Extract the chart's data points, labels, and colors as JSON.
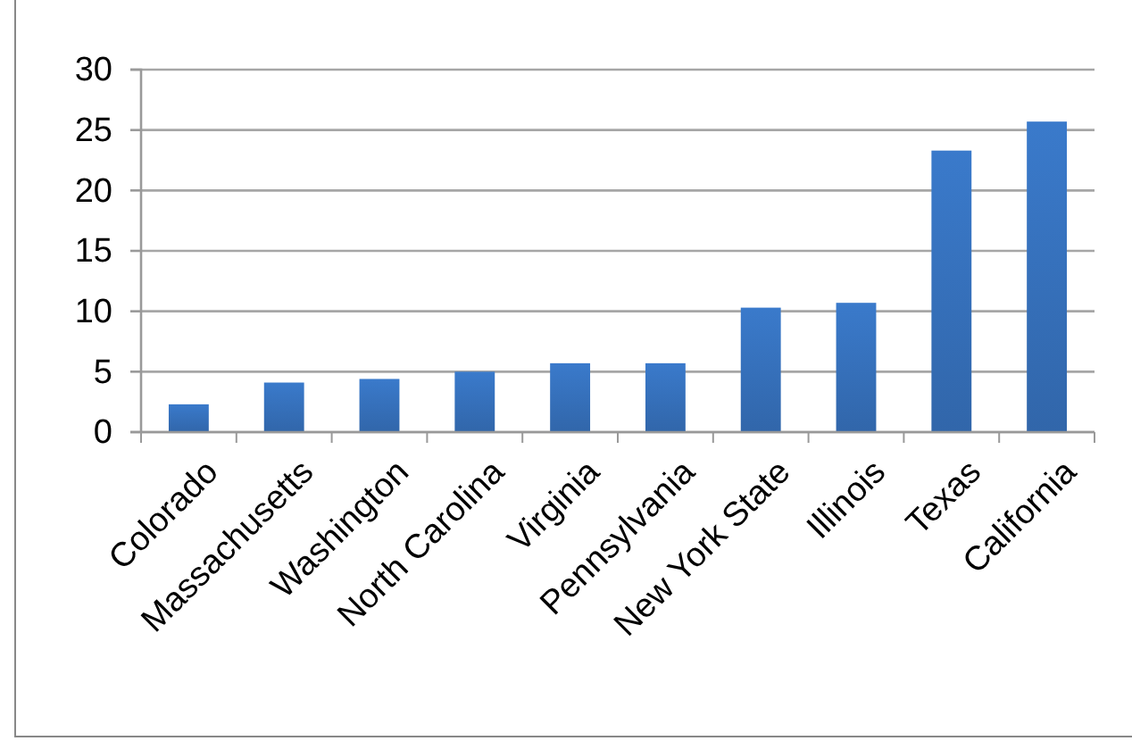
{
  "chart_data": {
    "type": "bar",
    "categories": [
      "Colorado",
      "Massachusetts",
      "Washington",
      "North Carolina",
      "Virginia",
      "Pennsylvania",
      "New York State",
      "Illinois",
      "Texas",
      "California"
    ],
    "values": [
      2.3,
      4.1,
      4.4,
      5.0,
      5.7,
      5.7,
      10.3,
      10.7,
      23.3,
      25.7
    ],
    "color": "#3a7acb",
    "ylim": [
      0,
      30
    ],
    "yticks": [
      0,
      5,
      10,
      15,
      20,
      25,
      30
    ],
    "grid": "y"
  }
}
